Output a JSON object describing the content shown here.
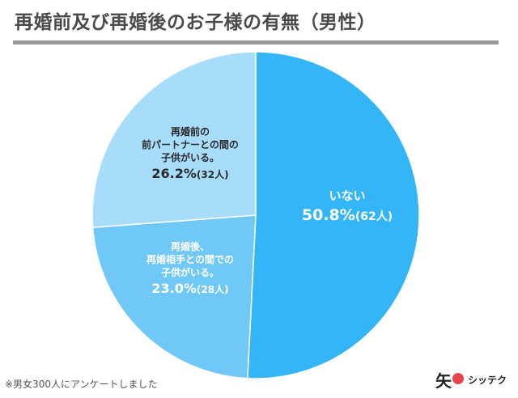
{
  "title": "再婚前及び再婚後のお子様の有無（男性）",
  "footnote": "※男女300人にアンケートしました",
  "logo": {
    "mark": "矢",
    "text": "シッテク"
  },
  "chart_data": {
    "type": "pie",
    "title": "再婚前及び再婚後のお子様の有無（男性）",
    "start": "12 o'clock",
    "direction": "clockwise",
    "slices": [
      {
        "lines": [
          "いない"
        ],
        "percent": "50.8%",
        "count": "(62人)",
        "value": 50.8,
        "color": "#33b5f8"
      },
      {
        "lines": [
          "再婚後、",
          "再婚相手との間での",
          "子供がいる。"
        ],
        "percent": "23.0%",
        "count": "(28人)",
        "value": 23.0,
        "color": "#6fc8f8"
      },
      {
        "lines": [
          "再婚前の",
          "前パートナーとの間の",
          "子供がいる。"
        ],
        "percent": "26.2%",
        "count": "(32人)",
        "value": 26.2,
        "color": "#a8dcfb"
      }
    ]
  }
}
